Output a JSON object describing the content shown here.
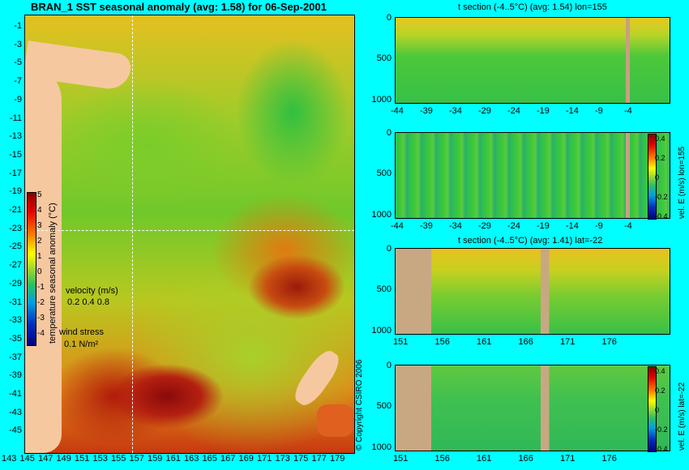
{
  "map": {
    "title": "BRAN_1 SST seasonal anomaly (avg: 1.58) for 06-Sep-2001",
    "y_ticks": [
      "-1",
      "-3",
      "-5",
      "-7",
      "-9",
      "-11",
      "-13",
      "-15",
      "-17",
      "-19",
      "-21",
      "-23",
      "-25",
      "-27",
      "-29",
      "-31",
      "-33",
      "-35",
      "-37",
      "-39",
      "-41",
      "-43",
      "-45"
    ],
    "x_ticks": [
      "143",
      "145",
      "147",
      "149",
      "151",
      "153",
      "155",
      "157",
      "159",
      "161",
      "163",
      "165",
      "167",
      "169",
      "171",
      "173",
      "175",
      "177",
      "179"
    ],
    "colorbar_label": "temperature seasonal anomaly (°C)",
    "colorbar_ticks": [
      "5",
      "4",
      "3",
      "2",
      "1",
      "0",
      "-1",
      "-2",
      "-3",
      "-4"
    ],
    "velocity_label": "velocity (m/s)",
    "velocity_scale": "0.2 0.4 0.8",
    "wind_label": "wind stress",
    "wind_scale": "0.1 N/m²",
    "copyright": "© Copyright CSIRO 2006"
  },
  "panels": [
    {
      "title": "t section (-4..5°C) (avg: 1.54) lon=155",
      "x_ticks": [
        "-44",
        "-39",
        "-34",
        "-29",
        "-24",
        "-19",
        "-14",
        "-9",
        "-4"
      ],
      "y_ticks": [
        "0",
        "500",
        "1000"
      ],
      "cbar": null
    },
    {
      "title": "",
      "x_ticks": [
        "-44",
        "-39",
        "-34",
        "-29",
        "-24",
        "-19",
        "-14",
        "-9",
        "-4"
      ],
      "y_ticks": [
        "0",
        "500",
        "1000"
      ],
      "cbar": {
        "label": "vel. E (m/s) lon=155",
        "ticks": [
          "0.4",
          "0.2",
          "0",
          "-0.2",
          "-0.4"
        ]
      }
    },
    {
      "title": "t section (-4..5°C) (avg: 1.41) lat=-22",
      "x_ticks": [
        "151",
        "156",
        "161",
        "166",
        "171",
        "176"
      ],
      "y_ticks": [
        "0",
        "500",
        "1000"
      ],
      "cbar": null
    },
    {
      "title": "",
      "x_ticks": [
        "151",
        "156",
        "161",
        "166",
        "171",
        "176"
      ],
      "y_ticks": [
        "0",
        "500",
        "1000"
      ],
      "cbar": {
        "label": "vel. E (m/s) lat=-22",
        "ticks": [
          "0.4",
          "0.2",
          "0",
          "-0.2",
          "-0.4"
        ]
      }
    }
  ]
}
